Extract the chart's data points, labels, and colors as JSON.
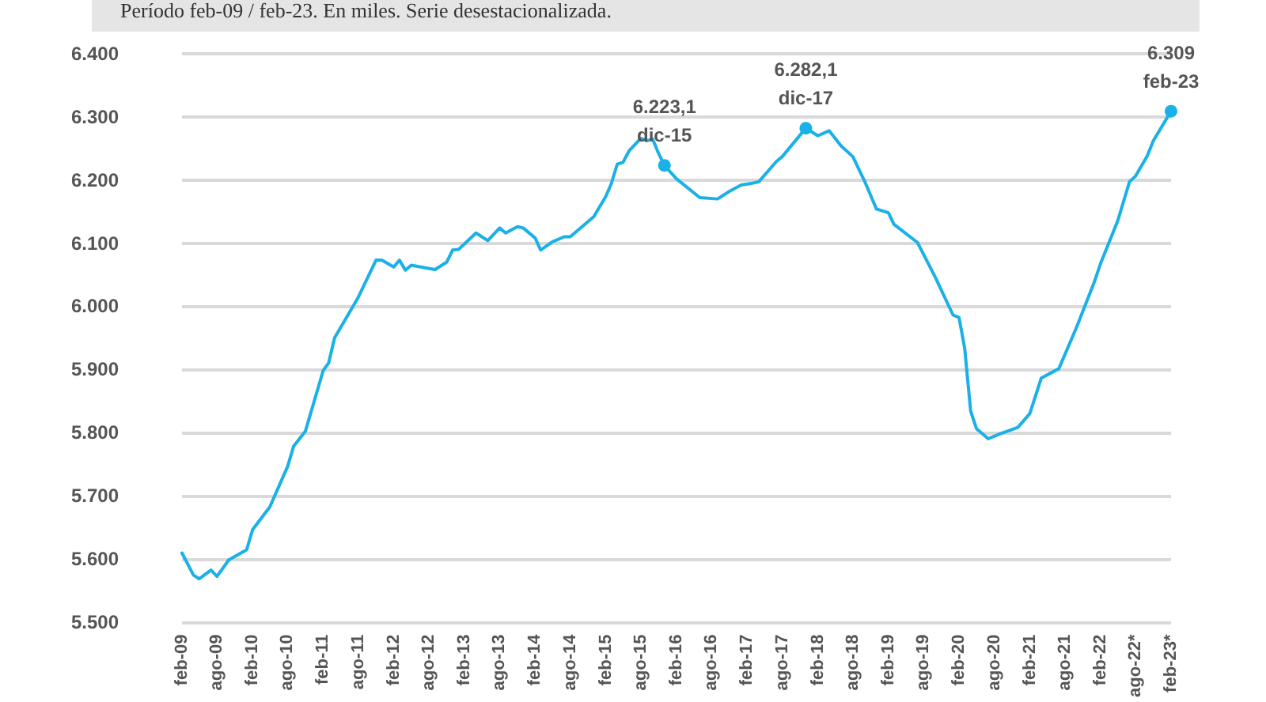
{
  "chart_data": {
    "type": "line",
    "subtitle": "Período feb-09 / feb-23. En miles. Serie desestacionalizada.",
    "x": [
      "2009-02",
      "2009-04",
      "2009-05",
      "2009-07",
      "2009-08",
      "2009-10",
      "2010-01",
      "2010-02",
      "2010-05",
      "2010-08",
      "2010-09",
      "2010-11",
      "2011-02",
      "2011-03",
      "2011-04",
      "2011-08",
      "2011-11",
      "2011-12",
      "2012-02",
      "2012-03",
      "2012-04",
      "2012-05",
      "2012-09",
      "2012-11",
      "2012-12",
      "2013-01",
      "2013-04",
      "2013-06",
      "2013-08",
      "2013-09",
      "2013-11",
      "2013-12",
      "2014-02",
      "2014-03",
      "2014-05",
      "2014-07",
      "2014-08",
      "2014-10",
      "2014-12",
      "2015-02",
      "2015-03",
      "2015-04",
      "2015-05",
      "2015-06",
      "2015-08",
      "2015-09",
      "2015-10",
      "2015-11",
      "2015-12",
      "2016-02",
      "2016-06",
      "2016-09",
      "2016-11",
      "2017-01",
      "2017-03",
      "2017-04",
      "2017-07",
      "2017-08",
      "2017-12",
      "2018-02",
      "2018-04",
      "2018-06",
      "2018-08",
      "2018-10",
      "2018-12",
      "2019-02",
      "2019-03",
      "2019-07",
      "2019-10",
      "2020-01",
      "2020-02",
      "2020-03",
      "2020-04",
      "2020-05",
      "2020-07",
      "2020-09",
      "2020-12",
      "2021-02",
      "2021-04",
      "2021-07",
      "2021-10",
      "2022-01",
      "2022-02",
      "2022-05",
      "2022-07",
      "2022-08",
      "2022-10",
      "2022-11",
      "2023-02"
    ],
    "series": [
      {
        "color": "#1ab0e8",
        "values": [
          5609,
          5574,
          5568,
          5582,
          5572,
          5598,
          5614,
          5646,
          5682,
          5746,
          5778,
          5802,
          5898,
          5910,
          5950,
          6014,
          6073,
          6073,
          6062,
          6073,
          6057,
          6065,
          6058,
          6070,
          6089,
          6090,
          6116,
          6104,
          6124,
          6116,
          6126,
          6124,
          6108,
          6089,
          6102,
          6110,
          6110,
          6126,
          6142,
          6174,
          6194,
          6225,
          6228,
          6246,
          6266,
          6262,
          6265,
          6242,
          6223.1,
          6202,
          6172,
          6170,
          6182,
          6192,
          6195,
          6197,
          6229,
          6237,
          6282.1,
          6270,
          6278,
          6254,
          6237,
          6198,
          6154,
          6148,
          6130,
          6101,
          6046,
          5986,
          5982,
          5934,
          5834,
          5806,
          5790,
          5798,
          5808,
          5830,
          5886,
          5901,
          5967,
          6039,
          6067,
          6135,
          6197,
          6206,
          6238,
          6262,
          6309
        ]
      }
    ],
    "xlim": [
      "2009-02",
      "2023-02"
    ],
    "xticks": [
      {
        "value": "2009-02",
        "label": "feb-09"
      },
      {
        "value": "2009-08",
        "label": "ago-09"
      },
      {
        "value": "2010-02",
        "label": "feb-10"
      },
      {
        "value": "2010-08",
        "label": "ago-10"
      },
      {
        "value": "2011-02",
        "label": "feb-11"
      },
      {
        "value": "2011-08",
        "label": "ago-11"
      },
      {
        "value": "2012-02",
        "label": "feb-12"
      },
      {
        "value": "2012-08",
        "label": "ago-12"
      },
      {
        "value": "2013-02",
        "label": "feb-13"
      },
      {
        "value": "2013-08",
        "label": "ago-13"
      },
      {
        "value": "2014-02",
        "label": "feb-14"
      },
      {
        "value": "2014-08",
        "label": "ago-14"
      },
      {
        "value": "2015-02",
        "label": "feb-15"
      },
      {
        "value": "2015-08",
        "label": "ago-15"
      },
      {
        "value": "2016-02",
        "label": "feb-16"
      },
      {
        "value": "2016-08",
        "label": "ago-16"
      },
      {
        "value": "2017-02",
        "label": "feb-17"
      },
      {
        "value": "2017-08",
        "label": "ago-17"
      },
      {
        "value": "2018-02",
        "label": "feb-18"
      },
      {
        "value": "2018-08",
        "label": "ago-18"
      },
      {
        "value": "2019-02",
        "label": "feb-19"
      },
      {
        "value": "2019-08",
        "label": "ago-19"
      },
      {
        "value": "2020-02",
        "label": "feb-20"
      },
      {
        "value": "2020-08",
        "label": "ago-20"
      },
      {
        "value": "2021-02",
        "label": "feb-21"
      },
      {
        "value": "2021-08",
        "label": "ago-21"
      },
      {
        "value": "2022-02",
        "label": "feb-22"
      },
      {
        "value": "2022-08",
        "label": "ago-22*"
      },
      {
        "value": "2023-02",
        "label": "feb-23*"
      }
    ],
    "ylim": [
      5500,
      6400
    ],
    "yticks": [
      {
        "value": 5500,
        "label": "5.500"
      },
      {
        "value": 5600,
        "label": "5.600"
      },
      {
        "value": 5700,
        "label": "5.700"
      },
      {
        "value": 5800,
        "label": "5.800"
      },
      {
        "value": 5900,
        "label": "5.900"
      },
      {
        "value": 6000,
        "label": "6.000"
      },
      {
        "value": 6100,
        "label": "6.100"
      },
      {
        "value": 6200,
        "label": "6.200"
      },
      {
        "value": 6300,
        "label": "6.300"
      },
      {
        "value": 6400,
        "label": "6.400"
      }
    ],
    "annotations": [
      {
        "text": "6.223,1\ndic-15",
        "x": "2015-12",
        "y": 6223.1
      },
      {
        "text": "6.282,1\ndic-17",
        "x": "2017-12",
        "y": 6282.1
      },
      {
        "text": "6.309\nfeb-23",
        "x": "2023-02",
        "y": 6309
      }
    ],
    "grid": "y",
    "marker": "none",
    "line_style": "solid"
  }
}
